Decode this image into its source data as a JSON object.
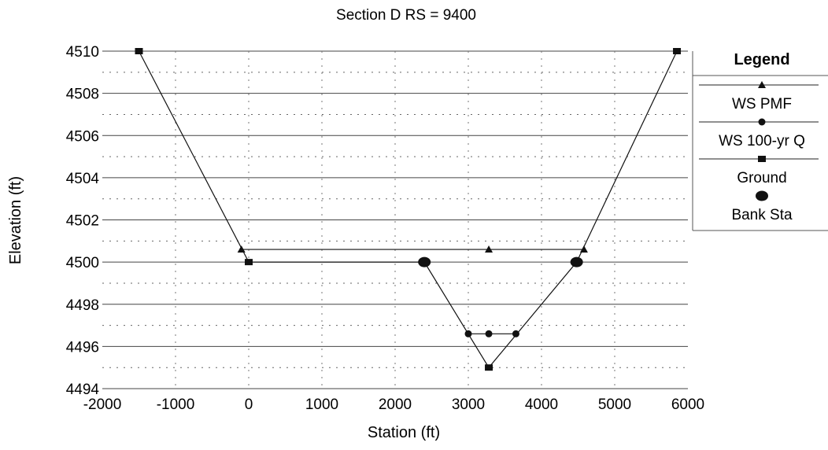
{
  "chart_data": {
    "type": "line",
    "title": "Section D   RS = 9400",
    "xlabel": "Station (ft)",
    "ylabel": "Elevation (ft)",
    "xlim": [
      -2000,
      6000
    ],
    "ylim": [
      4494,
      4510
    ],
    "xticks": [
      -2000,
      -1000,
      0,
      1000,
      2000,
      3000,
      4000,
      5000,
      6000
    ],
    "yticks": [
      4494,
      4496,
      4498,
      4500,
      4502,
      4504,
      4506,
      4508,
      4510
    ],
    "grid": true,
    "legend_title": "Legend",
    "legend_position": "right",
    "series": [
      {
        "name": "WS PMF",
        "marker": "triangle",
        "x": [
          -100,
          3280,
          4580
        ],
        "y": [
          4500.6,
          4500.6,
          4500.6
        ]
      },
      {
        "name": "WS 100-yr Q",
        "marker": "circle",
        "x": [
          3000,
          3280,
          3650
        ],
        "y": [
          4496.6,
          4496.6,
          4496.6
        ]
      },
      {
        "name": "Ground",
        "marker": "square",
        "x": [
          -1500,
          0,
          2400,
          3280,
          4480,
          5850
        ],
        "y": [
          4510,
          4500,
          4500,
          4495,
          4500,
          4510
        ]
      },
      {
        "name": "Bank Sta",
        "marker": "big-circle",
        "x": [
          2400,
          4480
        ],
        "y": [
          4500,
          4500
        ]
      }
    ]
  }
}
